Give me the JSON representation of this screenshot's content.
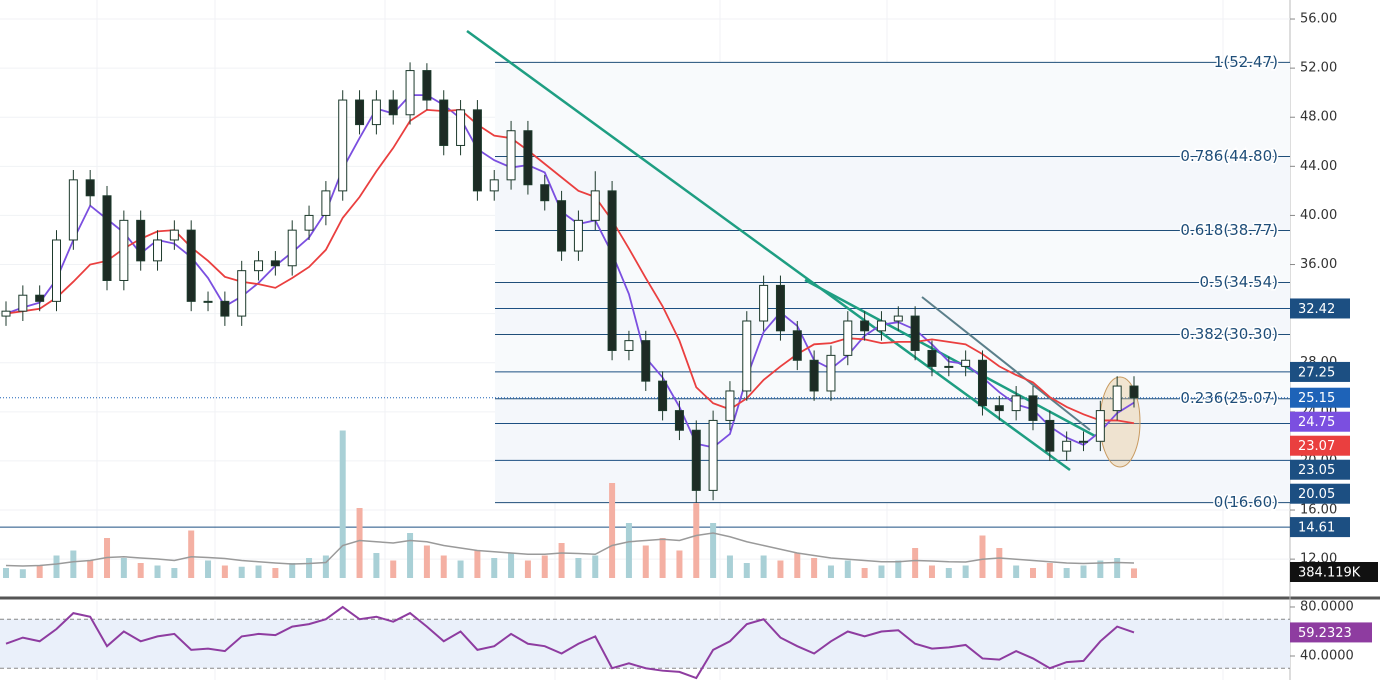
{
  "chart_data": [
    {
      "type": "candlestick",
      "up_color": "#ffffff",
      "down_color": "#1d2b24",
      "outline_color": "#1d3a2c",
      "open": [
        31.8,
        32.2,
        33.5,
        33.0,
        38.0,
        42.9,
        41.6,
        34.7,
        39.6,
        36.3,
        38.0,
        38.8,
        33.0,
        33.0,
        31.8,
        35.5,
        36.3,
        35.9,
        38.8,
        40.0,
        42.0,
        49.4,
        47.4,
        49.4,
        48.2,
        51.8,
        49.4,
        45.7,
        48.6,
        42.0,
        42.9,
        46.9,
        42.5,
        41.2,
        37.1,
        39.6,
        42.0,
        29.0,
        29.8,
        26.5,
        24.1,
        22.5,
        17.6,
        23.3,
        25.7,
        31.4,
        34.3,
        30.6,
        28.2,
        25.7,
        28.6,
        31.4,
        30.6,
        31.4,
        31.8,
        29.0,
        27.7,
        27.7,
        28.2,
        24.5,
        24.1,
        25.3,
        23.3,
        20.8,
        21.6,
        21.6,
        24.1,
        26.1
      ],
      "high": [
        33.0,
        34.3,
        34.3,
        38.8,
        43.7,
        43.7,
        42.4,
        40.4,
        40.4,
        38.8,
        39.6,
        39.6,
        33.8,
        33.8,
        36.3,
        37.1,
        37.1,
        39.6,
        40.8,
        42.8,
        50.2,
        50.2,
        50.2,
        50.2,
        52.47,
        52.4,
        50.2,
        49.4,
        49.4,
        43.7,
        47.7,
        47.7,
        43.3,
        42.0,
        40.4,
        43.6,
        42.8,
        30.6,
        30.6,
        27.3,
        24.9,
        23.3,
        24.1,
        26.5,
        32.2,
        35.1,
        35.1,
        31.4,
        29.0,
        29.4,
        32.2,
        32.2,
        32.2,
        32.6,
        32.6,
        29.8,
        28.5,
        29.0,
        29.0,
        25.3,
        26.1,
        26.1,
        24.1,
        22.4,
        22.4,
        24.9,
        26.9,
        26.9
      ],
      "low": [
        31.0,
        31.4,
        32.2,
        32.2,
        37.2,
        40.8,
        33.9,
        33.9,
        35.5,
        35.5,
        37.2,
        32.2,
        32.2,
        31.0,
        31.0,
        34.7,
        35.1,
        35.1,
        38.0,
        39.2,
        41.2,
        46.6,
        46.6,
        47.4,
        47.4,
        48.6,
        44.9,
        44.9,
        41.2,
        41.2,
        42.1,
        41.7,
        40.4,
        36.3,
        36.3,
        38.8,
        28.2,
        28.2,
        25.7,
        23.3,
        21.7,
        16.6,
        16.8,
        22.5,
        24.9,
        30.6,
        29.8,
        27.4,
        24.9,
        24.9,
        27.8,
        29.8,
        29.8,
        30.6,
        28.2,
        26.9,
        26.9,
        26.9,
        23.7,
        23.3,
        23.3,
        22.5,
        20.0,
        20.0,
        20.8,
        20.8,
        23.3,
        24.35
      ],
      "close": [
        32.2,
        33.5,
        33.0,
        38.0,
        42.9,
        41.6,
        34.7,
        39.6,
        36.3,
        38.0,
        38.8,
        33.0,
        33.0,
        31.8,
        35.5,
        36.3,
        35.9,
        38.8,
        40.0,
        42.0,
        49.4,
        47.4,
        49.4,
        48.2,
        51.8,
        49.4,
        45.7,
        48.6,
        42.0,
        42.9,
        46.9,
        42.5,
        41.2,
        37.1,
        39.6,
        42.0,
        29.0,
        29.8,
        26.5,
        24.1,
        22.5,
        17.6,
        23.3,
        25.7,
        31.4,
        34.3,
        30.6,
        28.2,
        25.7,
        28.6,
        31.4,
        30.6,
        31.4,
        31.8,
        29.0,
        27.7,
        27.7,
        28.2,
        24.5,
        24.1,
        25.3,
        23.3,
        20.8,
        21.6,
        21.6,
        24.1,
        26.1,
        25.15
      ],
      "close_color": "#1e63b8",
      "ma": [
        {
          "color": "#7b4fe0",
          "values": [
            32.0,
            32.5,
            32.9,
            34.8,
            38.0,
            40.8,
            39.7,
            38.6,
            36.9,
            38.0,
            37.7,
            36.6,
            34.9,
            32.6,
            33.4,
            34.5,
            35.9,
            37.0,
            38.2,
            40.3,
            43.8,
            46.3,
            48.7,
            48.3,
            49.8,
            49.8,
            49.0,
            47.9,
            45.4,
            44.5,
            43.9,
            44.1,
            43.5,
            40.3,
            39.3,
            39.6,
            36.9,
            33.6,
            28.4,
            26.8,
            24.4,
            21.4,
            21.1,
            22.2,
            26.8,
            30.5,
            32.1,
            31.0,
            28.2,
            27.5,
            28.6,
            30.2,
            31.1,
            31.3,
            30.7,
            29.5,
            28.1,
            27.9,
            26.8,
            25.6,
            24.6,
            24.2,
            22.8,
            21.9,
            21.3,
            22.4,
            23.9,
            24.75
          ]
        },
        {
          "color": "#ea3f3f",
          "values": [
            32.0,
            32.2,
            32.4,
            33.3,
            34.6,
            36.0,
            36.3,
            37.3,
            38.1,
            38.7,
            38.8,
            37.4,
            36.3,
            35.0,
            34.6,
            34.4,
            34.1,
            34.9,
            35.8,
            37.2,
            39.8,
            41.5,
            43.6,
            45.5,
            47.7,
            48.6,
            48.5,
            48.6,
            47.4,
            46.5,
            46.3,
            45.3,
            44.2,
            43.1,
            42.0,
            41.5,
            39.6,
            37.3,
            34.9,
            32.6,
            29.8,
            26.0,
            24.7,
            24.2,
            25.1,
            26.6,
            27.7,
            28.7,
            29.5,
            29.6,
            30.0,
            29.9,
            29.6,
            29.7,
            29.7,
            29.9,
            29.7,
            29.5,
            28.7,
            27.7,
            27.0,
            26.4,
            25.2,
            24.4,
            23.8,
            23.3,
            23.3,
            23.07
          ]
        }
      ],
      "volume": {
        "values": [
          400000,
          350000,
          500000,
          900000,
          1100000,
          700000,
          1600000,
          800000,
          600000,
          500000,
          400000,
          1900000,
          700000,
          500000,
          450000,
          500000,
          400000,
          600000,
          800000,
          900000,
          5900000,
          2800000,
          1000000,
          700000,
          1800000,
          1300000,
          900000,
          700000,
          1100000,
          800000,
          1000000,
          700000,
          900000,
          1400000,
          800000,
          900000,
          3800000,
          2200000,
          1300000,
          1600000,
          1100000,
          3000000,
          2200000,
          900000,
          600000,
          900000,
          700000,
          1000000,
          800000,
          500000,
          700000,
          400000,
          500000,
          700000,
          1200000,
          500000,
          400000,
          500000,
          1700000,
          1200000,
          500000,
          400000,
          600000,
          400000,
          500000,
          700000,
          800000,
          384119
        ],
        "lim": [
          0,
          8000000
        ],
        "label": "384.119K",
        "up_color": "#a9d0d6",
        "down_color": "#f4b0a3",
        "ma": {
          "color": "#9a9a9a",
          "values": [
            500000,
            480000,
            500000,
            560000,
            650000,
            700000,
            820000,
            850000,
            800000,
            760000,
            700000,
            850000,
            820000,
            780000,
            700000,
            650000,
            600000,
            560000,
            580000,
            620000,
            1300000,
            1500000,
            1450000,
            1400000,
            1500000,
            1450000,
            1300000,
            1200000,
            1100000,
            1050000,
            1000000,
            950000,
            950000,
            1000000,
            980000,
            950000,
            1300000,
            1450000,
            1500000,
            1550000,
            1500000,
            1700000,
            1800000,
            1650000,
            1450000,
            1300000,
            1150000,
            1000000,
            900000,
            800000,
            750000,
            700000,
            650000,
            650000,
            700000,
            680000,
            650000,
            640000,
            750000,
            800000,
            750000,
            700000,
            650000,
            600000,
            580000,
            600000,
            620000,
            600000
          ]
        }
      },
      "ylim": [
        10.3,
        57.55
      ],
      "yticks": [
        {
          "value": 12,
          "label": "12.00"
        },
        {
          "value": 16,
          "label": "16.00"
        },
        {
          "value": 20,
          "label": "20.00"
        },
        {
          "value": 24,
          "label": "24.00"
        },
        {
          "value": 28,
          "label": "28.00"
        },
        {
          "value": 32,
          "label": "32.00"
        },
        {
          "value": 36,
          "label": "36.00"
        },
        {
          "value": 40,
          "label": "40.00"
        },
        {
          "value": 44,
          "label": "44.00"
        },
        {
          "value": 48,
          "label": "48.00"
        },
        {
          "value": 52,
          "label": "52.00"
        },
        {
          "value": 56,
          "label": "56.00"
        }
      ],
      "grid": true,
      "fib_color": "#1f4e79",
      "fib": [
        {
          "value": 52.47,
          "label": "1(52.47)"
        },
        {
          "value": 44.8,
          "label": "0.786(44.80)"
        },
        {
          "value": 38.77,
          "label": "0.618(38.77)"
        },
        {
          "value": 34.54,
          "label": "0.5(34.54)"
        },
        {
          "value": 30.3,
          "label": "0.382(30.30)"
        },
        {
          "value": 25.07,
          "label": "0.236(25.07)"
        },
        {
          "value": 16.6,
          "label": "0(16.60)"
        }
      ],
      "levels": [
        {
          "value": 32.42,
          "color": "#1c4f82"
        },
        {
          "value": 27.25,
          "color": "#1c4f82"
        },
        {
          "value": 23.05,
          "color": "#1c4f82"
        },
        {
          "value": 20.05,
          "color": "#1c4f82"
        },
        {
          "value": 14.61,
          "color": "#1c4f82"
        }
      ]
    },
    {
      "type": "line",
      "color": "#8e3ca0",
      "values": [
        50,
        55,
        52,
        62,
        75,
        72,
        48,
        60,
        52,
        56,
        58,
        45,
        46,
        44,
        56,
        58,
        57,
        64,
        66,
        70,
        80,
        70,
        72,
        68,
        75,
        64,
        52,
        60,
        45,
        48,
        58,
        50,
        48,
        42,
        50,
        56,
        30,
        34,
        30,
        28,
        27,
        22,
        45,
        52,
        66,
        70,
        55,
        48,
        42,
        52,
        60,
        56,
        60,
        61,
        50,
        46,
        47,
        49,
        38,
        37,
        44,
        38,
        30,
        35,
        36,
        52,
        64,
        59.2323
      ],
      "ylim": [
        20.4,
        85.7
      ],
      "yticks": [
        {
          "value": 40,
          "label": "40.0000"
        },
        {
          "value": 80,
          "label": "80.0000"
        }
      ],
      "bands": [
        30,
        70
      ],
      "band_color": "#eaf0fa"
    }
  ]
}
